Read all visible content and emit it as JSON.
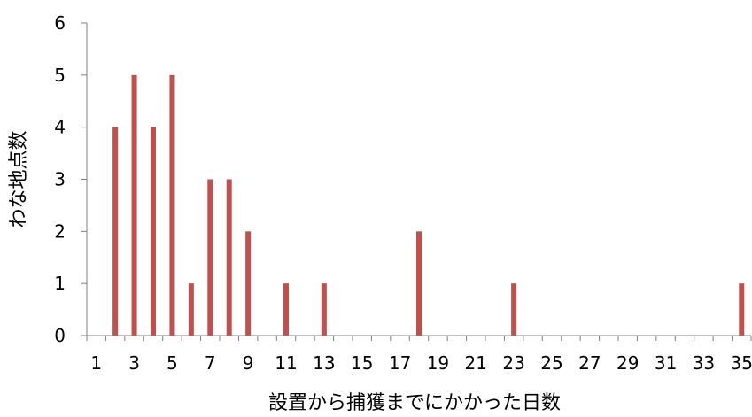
{
  "chart_data": {
    "type": "bar",
    "title": "",
    "xlabel": "設置から捕獲までにかかった日数",
    "ylabel": "わな地点数",
    "x": [
      1,
      2,
      3,
      4,
      5,
      6,
      7,
      8,
      9,
      10,
      11,
      12,
      13,
      14,
      15,
      16,
      17,
      18,
      19,
      20,
      21,
      22,
      23,
      24,
      25,
      26,
      27,
      28,
      29,
      30,
      31,
      32,
      33,
      34,
      35
    ],
    "values": [
      0,
      4,
      5,
      4,
      5,
      1,
      3,
      3,
      2,
      0,
      1,
      0,
      1,
      0,
      0,
      0,
      0,
      2,
      0,
      0,
      0,
      0,
      1,
      0,
      0,
      0,
      0,
      0,
      0,
      0,
      0,
      0,
      0,
      0,
      1
    ],
    "x_tick_labels": [
      "1",
      "3",
      "5",
      "7",
      "9",
      "11",
      "13",
      "15",
      "17",
      "19",
      "21",
      "23",
      "25",
      "27",
      "29",
      "31",
      "33",
      "35"
    ],
    "y_tick_labels": [
      "0",
      "1",
      "2",
      "3",
      "4",
      "5",
      "6"
    ],
    "ylim": [
      0,
      6
    ],
    "grid": false,
    "legend": "none",
    "bar_color": "#c0504d"
  }
}
